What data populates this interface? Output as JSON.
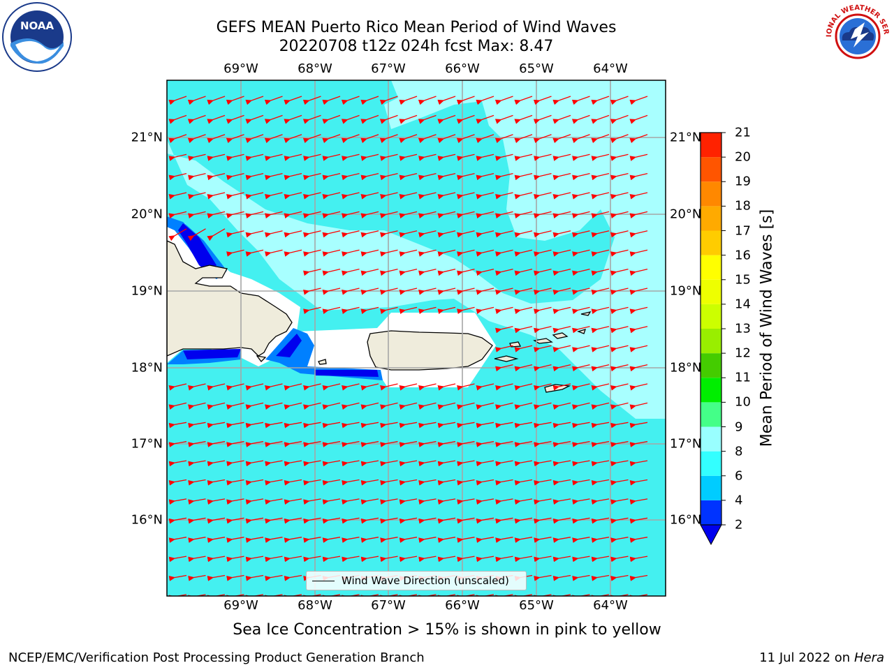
{
  "header": {
    "title_line1": "GEFS MEAN Puerto Rico Mean Period of Wind Waves",
    "title_line2": "20220708 t12z 024h fcst   Max: 8.47"
  },
  "logos": {
    "left_text": "NOAA",
    "right_text": "NATIONAL WEATHER SERVICE"
  },
  "map": {
    "lon_ticks": [
      "69°W",
      "68°W",
      "67°W",
      "66°W",
      "65°W",
      "64°W"
    ],
    "lat_ticks": [
      "21°N",
      "20°N",
      "19°N",
      "18°N",
      "17°N",
      "16°N"
    ],
    "legend_label": "Wind Wave Direction (unscaled)"
  },
  "colorbar": {
    "title": "Mean Period of Wind Waves [s]",
    "labels": [
      "2",
      "4",
      "6",
      "8",
      "9",
      "10",
      "11",
      "12",
      "13",
      "14",
      "15",
      "16",
      "17",
      "18",
      "19",
      "20",
      "21"
    ],
    "colors": [
      "#0033ff",
      "#00ccff",
      "#33ffff",
      "#99ffff",
      "#44ff88",
      "#00ee00",
      "#44cc00",
      "#99ee00",
      "#ccff00",
      "#eeff00",
      "#ffff00",
      "#ffcc00",
      "#ffaa00",
      "#ff8800",
      "#ff5500",
      "#ff2200",
      "#ff0000"
    ],
    "under_color": "#0000ee"
  },
  "colors": {
    "water_main": "#44f0f0",
    "water_light": "#a8ffff",
    "water_blue": "#0080ff",
    "water_deep": "#0000ee",
    "land": "#efecdc",
    "arrow": "#ff0000",
    "grid": "#a6a6a6"
  },
  "footnote": "Sea Ice Concentration > 15% is shown in pink to yellow",
  "footer": {
    "left": "NCEP/EMC/Verification Post Processing Product Generation Branch",
    "right_prefix": "11 Jul 2022 on ",
    "right_host": "Hera"
  }
}
